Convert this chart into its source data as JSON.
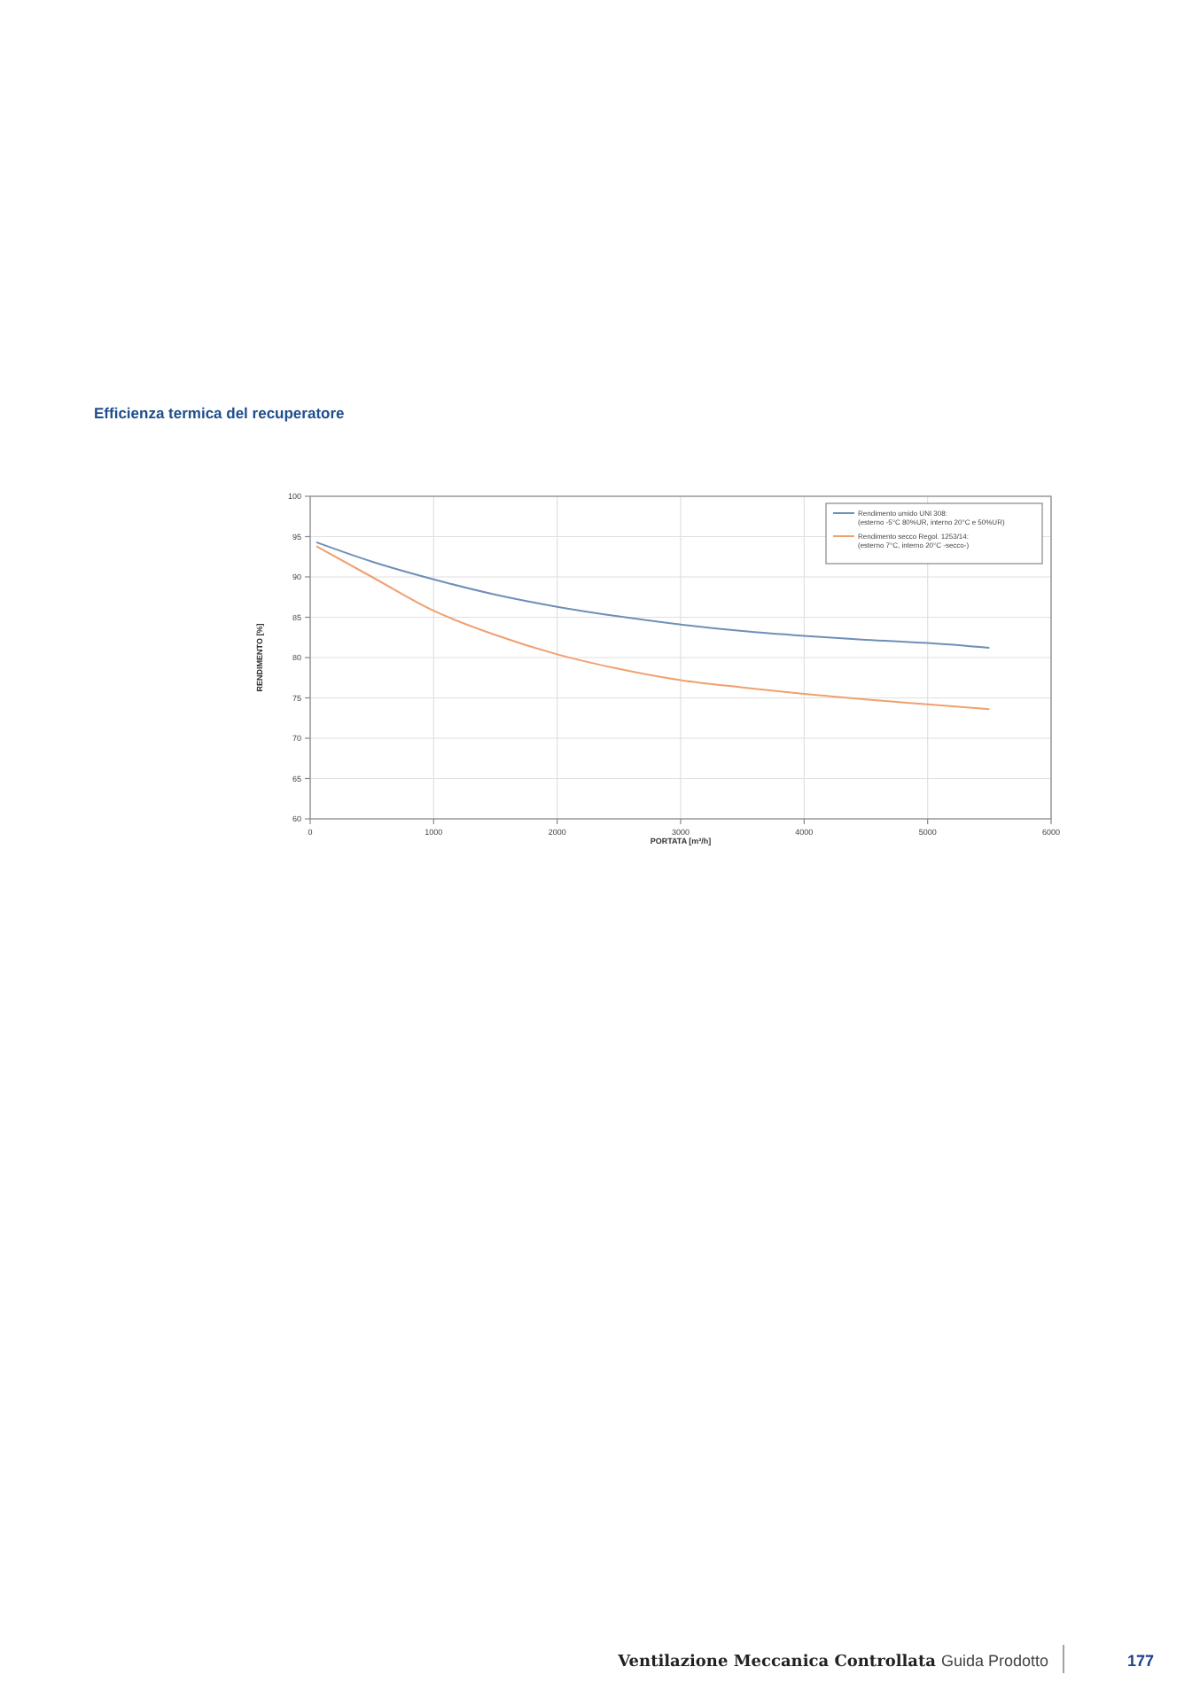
{
  "chart_data": {
    "type": "line",
    "title": "Efficienza termica del recuperatore",
    "xlabel": "PORTATA [m³/h]",
    "ylabel": "RENDIMENTO [%]",
    "xlim": [
      0,
      6000
    ],
    "xticks": [
      0,
      1000,
      2000,
      3000,
      4000,
      5000,
      6000
    ],
    "ylim": [
      60,
      100
    ],
    "yticks": [
      60,
      65,
      70,
      75,
      80,
      85,
      90,
      95,
      100
    ],
    "grid": true,
    "legend": "top right",
    "marker": "none",
    "line_style": "solid",
    "series": [
      {
        "name": "Rendimento umido UNI 308:\n(esterno -5°C 80%UR, interno 20°C e 50%UR)",
        "color": "#6f8fb8",
        "x": [
          50,
          500,
          1000,
          1500,
          2000,
          2500,
          3000,
          3500,
          4000,
          4500,
          5000,
          5500
        ],
        "values": [
          94.3,
          91.9,
          89.7,
          87.8,
          86.3,
          85.1,
          84.1,
          83.3,
          82.7,
          82.2,
          81.8,
          81.2
        ]
      },
      {
        "name": "Rendimento secco Regol. 1253/14:\n(esterno 7°C, interno 20°C -secco-)",
        "color": "#f0a070",
        "x": [
          50,
          500,
          1000,
          1500,
          2000,
          2500,
          3000,
          3500,
          4000,
          4500,
          5000,
          5500
        ],
        "values": [
          93.8,
          90.0,
          85.8,
          82.8,
          80.4,
          78.6,
          77.2,
          76.3,
          75.5,
          74.8,
          74.2,
          73.6
        ]
      }
    ],
    "annotations": [
      "Ventilazione Meccanica Controllata",
      "Guida Prodotto",
      "177"
    ]
  }
}
